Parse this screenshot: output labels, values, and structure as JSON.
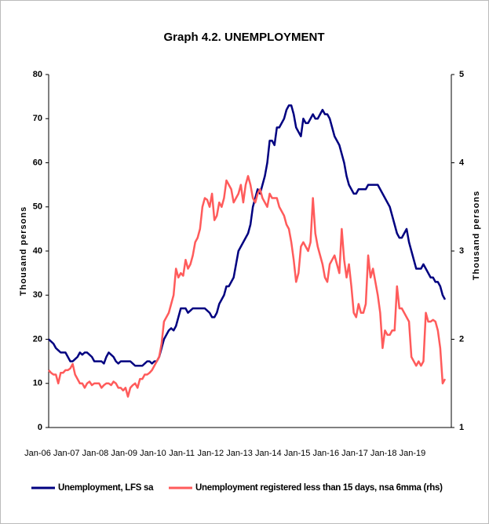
{
  "chart_data": {
    "type": "line",
    "title": "Graph 4.2. UNEMPLOYMENT",
    "ylabel": "Thousand persons",
    "y2label": "Thousand persons",
    "categories": [
      "Jan-06",
      null,
      null,
      null,
      null,
      null,
      null,
      null,
      null,
      null,
      null,
      null,
      "Jan-07",
      null,
      null,
      null,
      null,
      null,
      null,
      null,
      null,
      null,
      null,
      null,
      "Jan-08",
      null,
      null,
      null,
      null,
      null,
      null,
      null,
      null,
      null,
      null,
      null,
      "Jan-09",
      null,
      null,
      null,
      null,
      null,
      null,
      null,
      null,
      null,
      null,
      null,
      "Jan-10",
      null,
      null,
      null,
      null,
      null,
      null,
      null,
      null,
      null,
      null,
      null,
      "Jan-11",
      null,
      null,
      null,
      null,
      null,
      null,
      null,
      null,
      null,
      null,
      null,
      "Jan-12",
      null,
      null,
      null,
      null,
      null,
      null,
      null,
      null,
      null,
      null,
      null,
      "Jan-13",
      null,
      null,
      null,
      null,
      null,
      null,
      null,
      null,
      null,
      null,
      null,
      "Jan-14",
      null,
      null,
      null,
      null,
      null,
      null,
      null,
      null,
      null,
      null,
      null,
      "Jan-15",
      null,
      null,
      null,
      null,
      null,
      null,
      null,
      null,
      null,
      null,
      null,
      "Jan-16",
      null,
      null,
      null,
      null,
      null,
      null,
      null,
      null,
      null,
      null,
      null,
      "Jan-17",
      null,
      null,
      null,
      null,
      null,
      null,
      null,
      null,
      null,
      null,
      null,
      "Jan-18",
      null,
      null,
      null,
      null,
      null,
      null,
      null,
      null,
      null,
      null,
      null,
      "Jan-19",
      null,
      null,
      null,
      null,
      null,
      null,
      null,
      null,
      null
    ],
    "series": [
      {
        "name": "Unemployment, LFS sa",
        "color": "#000080",
        "values": [
          20,
          19.5,
          19,
          18,
          17.5,
          17,
          17,
          17,
          16,
          15,
          15,
          15.5,
          16,
          17,
          16.5,
          17,
          17,
          16.5,
          16,
          15,
          15,
          15,
          15,
          14.5,
          16,
          17,
          16.5,
          16,
          15,
          14.5,
          15,
          15,
          15,
          15,
          15,
          14.5,
          14,
          14,
          14,
          14,
          14.5,
          15,
          15,
          14.5,
          15,
          15,
          16,
          18,
          20,
          21,
          22,
          22.5,
          22,
          23,
          25,
          27,
          27,
          27,
          26,
          26.5,
          27,
          27,
          27,
          27,
          27,
          27,
          26.5,
          26,
          25,
          25,
          26,
          28,
          29,
          30,
          32,
          32,
          33,
          34,
          37,
          40,
          41,
          42,
          43,
          44,
          46,
          50,
          52,
          54,
          53,
          55,
          57,
          60,
          65,
          65,
          64,
          68,
          68,
          69,
          70,
          72,
          73,
          73,
          71,
          68,
          67,
          66,
          70,
          69,
          69,
          70,
          71,
          70,
          70,
          71,
          72,
          71,
          71,
          70,
          68,
          66,
          65,
          64,
          62,
          60,
          57,
          55,
          54,
          53,
          53,
          54,
          54,
          54,
          54,
          55,
          55,
          55,
          55,
          55,
          54,
          53,
          52,
          51,
          50,
          48,
          46,
          44,
          43,
          43,
          44,
          45,
          42,
          40,
          38,
          36,
          36,
          36,
          37,
          36,
          35,
          34,
          34,
          33,
          33,
          32,
          30,
          29
        ]
      },
      {
        "name": "Unemployment registered less than 15 days, nsa 6mma (rhs)",
        "color": "#ff5b5b",
        "axis": "y2",
        "values": [
          1.65,
          1.62,
          1.6,
          1.6,
          1.5,
          1.62,
          1.62,
          1.65,
          1.65,
          1.67,
          1.72,
          1.6,
          1.55,
          1.5,
          1.5,
          1.45,
          1.5,
          1.52,
          1.48,
          1.5,
          1.5,
          1.5,
          1.45,
          1.48,
          1.5,
          1.5,
          1.48,
          1.52,
          1.5,
          1.45,
          1.45,
          1.42,
          1.45,
          1.35,
          1.45,
          1.48,
          1.5,
          1.45,
          1.55,
          1.55,
          1.6,
          1.6,
          1.62,
          1.65,
          1.7,
          1.75,
          1.8,
          1.95,
          2.2,
          2.25,
          2.3,
          2.4,
          2.5,
          2.8,
          2.7,
          2.75,
          2.72,
          2.9,
          2.8,
          2.85,
          2.95,
          3.1,
          3.15,
          3.25,
          3.5,
          3.6,
          3.58,
          3.5,
          3.65,
          3.35,
          3.4,
          3.55,
          3.5,
          3.6,
          3.8,
          3.75,
          3.7,
          3.55,
          3.6,
          3.65,
          3.75,
          3.55,
          3.75,
          3.85,
          3.75,
          3.6,
          3.55,
          3.65,
          3.7,
          3.6,
          3.55,
          3.5,
          3.65,
          3.6,
          3.6,
          3.6,
          3.5,
          3.45,
          3.4,
          3.3,
          3.25,
          3.1,
          2.9,
          2.65,
          2.75,
          3.05,
          3.1,
          3.05,
          3.0,
          3.1,
          3.6,
          3.2,
          3.05,
          2.95,
          2.85,
          2.7,
          2.65,
          2.85,
          2.9,
          2.95,
          2.85,
          2.75,
          3.25,
          2.9,
          2.7,
          2.85,
          2.6,
          2.3,
          2.25,
          2.4,
          2.3,
          2.3,
          2.4,
          2.95,
          2.7,
          2.8,
          2.65,
          2.5,
          2.3,
          1.9,
          2.1,
          2.05,
          2.05,
          2.1,
          2.1,
          2.6,
          2.35,
          2.35,
          2.3,
          2.25,
          2.2,
          1.8,
          1.75,
          1.7,
          1.75,
          1.7,
          1.75,
          2.3,
          2.2,
          2.2,
          2.22,
          2.2,
          2.1,
          1.9,
          1.5,
          1.55
        ]
      }
    ],
    "ylim": [
      0,
      80
    ],
    "yticks": [
      0,
      10,
      20,
      30,
      40,
      50,
      60,
      70,
      80
    ],
    "y2lim": [
      1,
      5
    ],
    "y2ticks": [
      1,
      2,
      3,
      4,
      5
    ],
    "grid": false,
    "legend": "bottom"
  }
}
